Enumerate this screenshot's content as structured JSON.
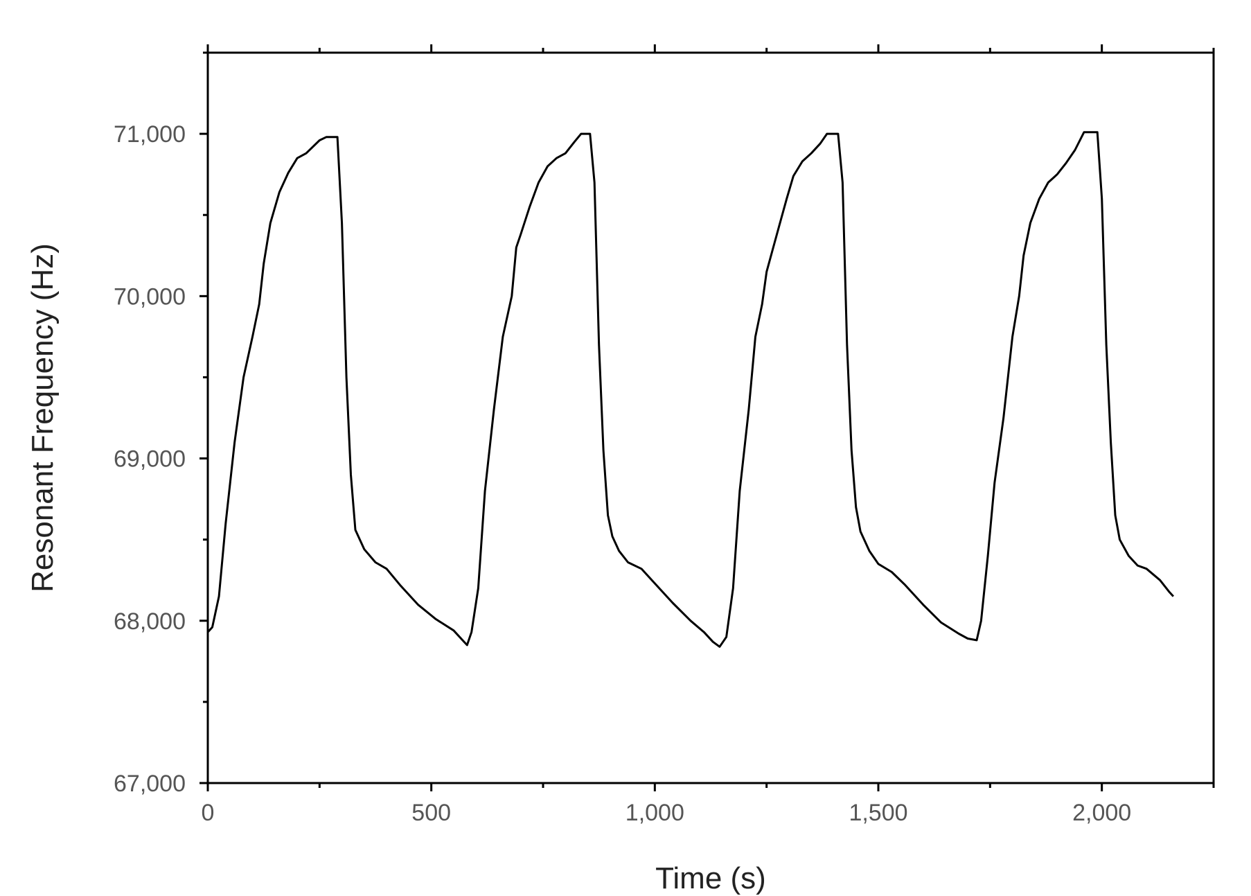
{
  "chart_data": {
    "type": "line",
    "xlabel": "Time (s)",
    "ylabel": "Resonant Frequency (Hz)",
    "xlim": [
      0,
      2250
    ],
    "ylim": [
      67000,
      71500
    ],
    "x_ticks": [
      {
        "value": 0,
        "label": "0"
      },
      {
        "value": 500,
        "label": "500"
      },
      {
        "value": 1000,
        "label": "1,000"
      },
      {
        "value": 1500,
        "label": "1,500"
      },
      {
        "value": 2000,
        "label": "2,000"
      }
    ],
    "y_ticks": [
      {
        "value": 67000,
        "label": "67,000"
      },
      {
        "value": 68000,
        "label": "68,000"
      },
      {
        "value": 69000,
        "label": "69,000"
      },
      {
        "value": 70000,
        "label": "70,000"
      },
      {
        "value": 71000,
        "label": "71,000"
      }
    ],
    "grid": false,
    "series": [
      {
        "color": "#000000",
        "points": [
          [
            0,
            67930
          ],
          [
            10,
            67960
          ],
          [
            25,
            68150
          ],
          [
            40,
            68600
          ],
          [
            60,
            69100
          ],
          [
            80,
            69500
          ],
          [
            100,
            69750
          ],
          [
            115,
            69950
          ],
          [
            125,
            70200
          ],
          [
            140,
            70450
          ],
          [
            160,
            70640
          ],
          [
            180,
            70760
          ],
          [
            200,
            70850
          ],
          [
            220,
            70880
          ],
          [
            250,
            70960
          ],
          [
            265,
            70980
          ],
          [
            290,
            70980
          ],
          [
            300,
            70450
          ],
          [
            310,
            69500
          ],
          [
            320,
            68900
          ],
          [
            330,
            68560
          ],
          [
            350,
            68440
          ],
          [
            375,
            68360
          ],
          [
            400,
            68320
          ],
          [
            430,
            68220
          ],
          [
            470,
            68100
          ],
          [
            510,
            68010
          ],
          [
            550,
            67940
          ],
          [
            570,
            67880
          ],
          [
            580,
            67850
          ],
          [
            590,
            67930
          ],
          [
            605,
            68200
          ],
          [
            620,
            68800
          ],
          [
            640,
            69300
          ],
          [
            660,
            69750
          ],
          [
            680,
            70000
          ],
          [
            690,
            70300
          ],
          [
            700,
            70380
          ],
          [
            720,
            70550
          ],
          [
            740,
            70700
          ],
          [
            760,
            70800
          ],
          [
            780,
            70850
          ],
          [
            800,
            70880
          ],
          [
            820,
            70950
          ],
          [
            835,
            71000
          ],
          [
            855,
            71000
          ],
          [
            865,
            70700
          ],
          [
            875,
            69700
          ],
          [
            885,
            69050
          ],
          [
            895,
            68650
          ],
          [
            905,
            68520
          ],
          [
            920,
            68430
          ],
          [
            940,
            68360
          ],
          [
            970,
            68320
          ],
          [
            1000,
            68230
          ],
          [
            1040,
            68110
          ],
          [
            1080,
            68000
          ],
          [
            1110,
            67930
          ],
          [
            1130,
            67870
          ],
          [
            1145,
            67840
          ],
          [
            1160,
            67900
          ],
          [
            1175,
            68200
          ],
          [
            1190,
            68800
          ],
          [
            1210,
            69300
          ],
          [
            1225,
            69750
          ],
          [
            1240,
            69950
          ],
          [
            1250,
            70150
          ],
          [
            1265,
            70300
          ],
          [
            1280,
            70450
          ],
          [
            1295,
            70600
          ],
          [
            1310,
            70740
          ],
          [
            1330,
            70830
          ],
          [
            1350,
            70880
          ],
          [
            1370,
            70940
          ],
          [
            1385,
            71000
          ],
          [
            1410,
            71000
          ],
          [
            1420,
            70700
          ],
          [
            1430,
            69700
          ],
          [
            1440,
            69050
          ],
          [
            1450,
            68700
          ],
          [
            1460,
            68550
          ],
          [
            1480,
            68430
          ],
          [
            1500,
            68350
          ],
          [
            1530,
            68300
          ],
          [
            1560,
            68220
          ],
          [
            1600,
            68100
          ],
          [
            1640,
            67990
          ],
          [
            1680,
            67920
          ],
          [
            1700,
            67890
          ],
          [
            1720,
            67880
          ],
          [
            1730,
            68000
          ],
          [
            1745,
            68400
          ],
          [
            1760,
            68850
          ],
          [
            1780,
            69250
          ],
          [
            1800,
            69750
          ],
          [
            1815,
            70000
          ],
          [
            1825,
            70250
          ],
          [
            1840,
            70450
          ],
          [
            1860,
            70600
          ],
          [
            1880,
            70700
          ],
          [
            1900,
            70750
          ],
          [
            1920,
            70820
          ],
          [
            1940,
            70900
          ],
          [
            1960,
            71010
          ],
          [
            1990,
            71010
          ],
          [
            2000,
            70600
          ],
          [
            2010,
            69700
          ],
          [
            2020,
            69100
          ],
          [
            2030,
            68650
          ],
          [
            2040,
            68500
          ],
          [
            2060,
            68400
          ],
          [
            2080,
            68340
          ],
          [
            2100,
            68320
          ],
          [
            2130,
            68250
          ],
          [
            2150,
            68180
          ],
          [
            2160,
            68150
          ]
        ]
      }
    ]
  }
}
